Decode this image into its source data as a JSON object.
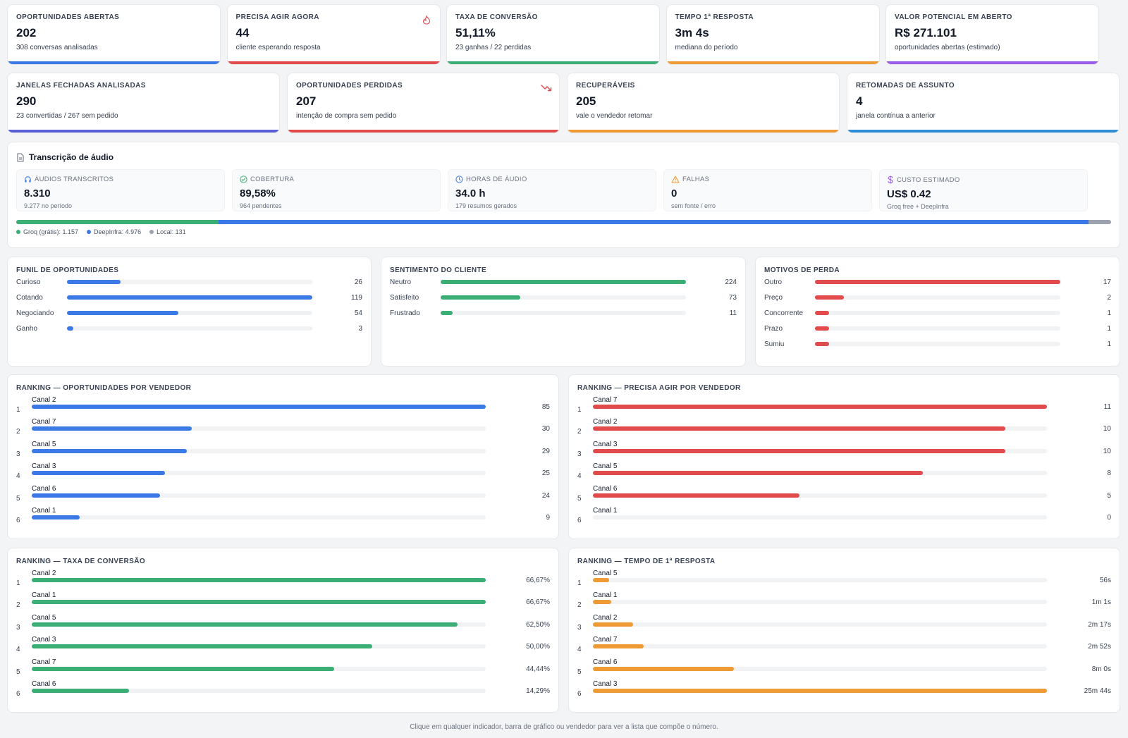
{
  "colors": {
    "blue": "#3b7ae6",
    "red": "#e14b4b",
    "green": "#3aae74",
    "orange": "#ee9a35",
    "purple": "#9b5ce8",
    "indigo": "#5a5fd6",
    "sky": "#2f8fd6",
    "gray": "#9ca3af"
  },
  "kpis_row1": [
    {
      "label": "OPORTUNIDADES ABERTAS",
      "value": "202",
      "sub": "308 conversas analisadas",
      "color": "#3b7ae6",
      "icon": ""
    },
    {
      "label": "PRECISA AGIR AGORA",
      "value": "44",
      "sub": "cliente esperando resposta",
      "color": "#e14b4b",
      "icon": "flame-icon"
    },
    {
      "label": "TAXA DE CONVERSÃO",
      "value": "51,11%",
      "sub": "23 ganhas / 22 perdidas",
      "color": "#3aae74",
      "icon": ""
    },
    {
      "label": "TEMPO 1ª RESPOSTA",
      "value": "3m 4s",
      "sub": "mediana do período",
      "color": "#ee9a35",
      "icon": ""
    },
    {
      "label": "VALOR POTENCIAL EM ABERTO",
      "value": "R$ 271.101",
      "sub": "oportunidades abertas (estimado)",
      "color": "#9b5ce8",
      "icon": ""
    }
  ],
  "kpis_row2": [
    {
      "label": "JANELAS FECHADAS ANALISADAS",
      "value": "290",
      "sub": "23 convertidas / 267 sem pedido",
      "color": "#5a5fd6",
      "icon": ""
    },
    {
      "label": "OPORTUNIDADES PERDIDAS",
      "value": "207",
      "sub": "intenção de compra sem pedido",
      "color": "#e14b4b",
      "icon": "trend-down-icon"
    },
    {
      "label": "RECUPERÁVEIS",
      "value": "205",
      "sub": "vale o vendedor retomar",
      "color": "#ee9a35",
      "icon": ""
    },
    {
      "label": "RETOMADAS DE ASSUNTO",
      "value": "4",
      "sub": "janela contínua a anterior",
      "color": "#2f8fd6",
      "icon": ""
    }
  ],
  "audio": {
    "title": "Transcrição de áudio",
    "stats": [
      {
        "label": "ÁUDIOS TRANSCRITOS",
        "value": "8.310",
        "sub": "9.277 no período",
        "icon": "headphones-icon",
        "icon_color": "#3b7ae6"
      },
      {
        "label": "COBERTURA",
        "value": "89,58%",
        "sub": "964 pendentes",
        "icon": "check-circle-icon",
        "icon_color": "#3aae74"
      },
      {
        "label": "HORAS DE ÁUDIO",
        "value": "34.0 h",
        "sub": "179 resumos gerados",
        "icon": "clock-icon",
        "icon_color": "#3b7ae6"
      },
      {
        "label": "FALHAS",
        "value": "0",
        "sub": "sem fonte / erro",
        "icon": "warning-icon",
        "icon_color": "#ee9a35"
      },
      {
        "label": "CUSTO ESTIMADO",
        "value": "US$ 0.42",
        "sub": "Groq free + DeepInfra",
        "icon": "dollar-icon",
        "icon_color": "#9b5ce8"
      }
    ],
    "providers": [
      {
        "label": "Groq (grátis): 1.157",
        "count": 1157,
        "color": "#3aae74"
      },
      {
        "label": "DeepInfra: 4.976",
        "count": 4976,
        "color": "#3b7ae6"
      },
      {
        "label": "Local: 131",
        "count": 131,
        "color": "#9ca3af"
      }
    ]
  },
  "funnel": {
    "title": "FUNIL DE OPORTUNIDADES",
    "color": "#3b7ae6",
    "max": 119,
    "items": [
      {
        "label": "Curioso",
        "value": 26
      },
      {
        "label": "Cotando",
        "value": 119
      },
      {
        "label": "Negociando",
        "value": 54
      },
      {
        "label": "Ganho",
        "value": 3
      }
    ]
  },
  "sentiment": {
    "title": "SENTIMENTO DO CLIENTE",
    "color": "#3aae74",
    "max": 224,
    "items": [
      {
        "label": "Neutro",
        "value": 224
      },
      {
        "label": "Satisfeito",
        "value": 73
      },
      {
        "label": "Frustrado",
        "value": 11
      }
    ]
  },
  "loss": {
    "title": "MOTIVOS DE PERDA",
    "color": "#e14b4b",
    "max": 17,
    "items": [
      {
        "label": "Outro",
        "value": 17
      },
      {
        "label": "Preço",
        "value": 2
      },
      {
        "label": "Concorrente",
        "value": 1
      },
      {
        "label": "Prazo",
        "value": 1
      },
      {
        "label": "Sumiu",
        "value": 1
      }
    ]
  },
  "rankings": [
    {
      "title": "RANKING — OPORTUNIDADES POR VENDEDOR",
      "color": "#3b7ae6",
      "rows": [
        {
          "pos": "1",
          "name": "Canal 2",
          "display": "85",
          "frac": 1.0
        },
        {
          "pos": "2",
          "name": "Canal 7",
          "display": "30",
          "frac": 0.353
        },
        {
          "pos": "3",
          "name": "Canal 5",
          "display": "29",
          "frac": 0.341
        },
        {
          "pos": "4",
          "name": "Canal 3",
          "display": "25",
          "frac": 0.294
        },
        {
          "pos": "5",
          "name": "Canal 6",
          "display": "24",
          "frac": 0.282
        },
        {
          "pos": "6",
          "name": "Canal 1",
          "display": "9",
          "frac": 0.106
        }
      ]
    },
    {
      "title": "RANKING — PRECISA AGIR POR VENDEDOR",
      "color": "#e14b4b",
      "rows": [
        {
          "pos": "1",
          "name": "Canal 7",
          "display": "11",
          "frac": 1.0
        },
        {
          "pos": "2",
          "name": "Canal 2",
          "display": "10",
          "frac": 0.909
        },
        {
          "pos": "3",
          "name": "Canal 3",
          "display": "10",
          "frac": 0.909
        },
        {
          "pos": "4",
          "name": "Canal 5",
          "display": "8",
          "frac": 0.727
        },
        {
          "pos": "5",
          "name": "Canal 6",
          "display": "5",
          "frac": 0.455
        },
        {
          "pos": "6",
          "name": "Canal 1",
          "display": "0",
          "frac": 0
        }
      ]
    },
    {
      "title": "RANKING — TAXA DE CONVERSÃO",
      "color": "#3aae74",
      "rows": [
        {
          "pos": "1",
          "name": "Canal 2",
          "display": "66,67%",
          "frac": 1.0
        },
        {
          "pos": "2",
          "name": "Canal 1",
          "display": "66,67%",
          "frac": 1.0
        },
        {
          "pos": "3",
          "name": "Canal 5",
          "display": "62,50%",
          "frac": 0.9375
        },
        {
          "pos": "4",
          "name": "Canal 3",
          "display": "50,00%",
          "frac": 0.75
        },
        {
          "pos": "5",
          "name": "Canal 7",
          "display": "44,44%",
          "frac": 0.6667
        },
        {
          "pos": "6",
          "name": "Canal 6",
          "display": "14,29%",
          "frac": 0.2143
        }
      ]
    },
    {
      "title": "RANKING — TEMPO DE 1ª RESPOSTA",
      "color": "#ee9a35",
      "rows": [
        {
          "pos": "1",
          "name": "Canal 5",
          "display": "56s",
          "frac": 0.036
        },
        {
          "pos": "2",
          "name": "Canal 1",
          "display": "1m 1s",
          "frac": 0.04
        },
        {
          "pos": "3",
          "name": "Canal 2",
          "display": "2m 17s",
          "frac": 0.089
        },
        {
          "pos": "4",
          "name": "Canal 7",
          "display": "2m 52s",
          "frac": 0.112
        },
        {
          "pos": "5",
          "name": "Canal 6",
          "display": "8m 0s",
          "frac": 0.311
        },
        {
          "pos": "6",
          "name": "Canal 3",
          "display": "25m 44s",
          "frac": 1.0
        }
      ]
    }
  ],
  "footer": "Clique em qualquer indicador, barra de gráfico ou vendedor para ver a lista que compõe o número."
}
